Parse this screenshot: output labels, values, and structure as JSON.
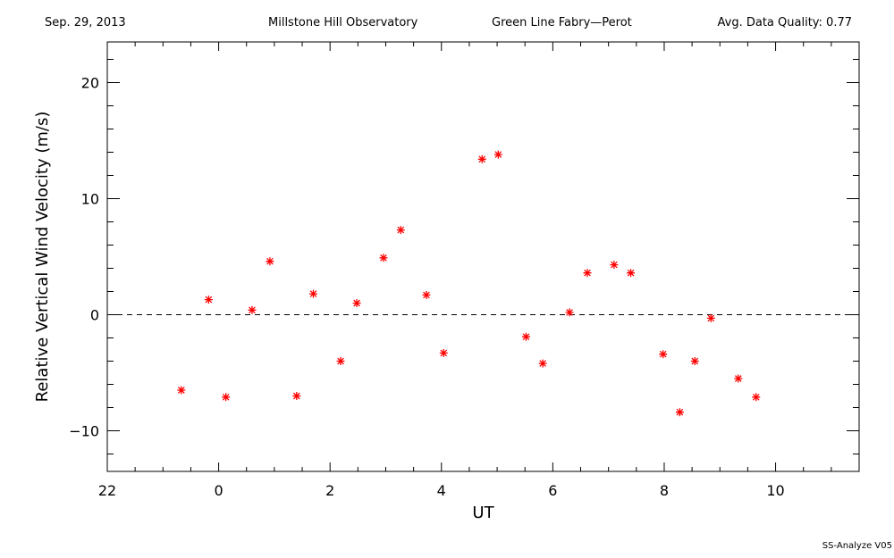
{
  "header": {
    "date": "Sep. 29, 2013",
    "observatory": "Millstone Hill Observatory",
    "instrument": "Green Line Fabry—Perot",
    "quality": "Avg. Data Quality: 0.77"
  },
  "footer": "SS-Analyze V05",
  "chart_data": {
    "type": "scatter",
    "xlabel": "UT",
    "ylabel": "Relative Vertical Wind Velocity (m/s)",
    "xlim": [
      22.0,
      35.5
    ],
    "ylim": [
      -13.5,
      23.5
    ],
    "x_ticks": [
      22,
      24,
      26,
      28,
      30,
      32,
      34
    ],
    "x_tick_labels": [
      "22",
      "0",
      "2",
      "4",
      "6",
      "8",
      "10"
    ],
    "y_ticks": [
      -10,
      0,
      10,
      20
    ],
    "y_tick_labels": [
      "−10",
      "0",
      "10",
      "20"
    ],
    "reference_line": 0,
    "marker": "asterisk",
    "marker_color": "#ff0000",
    "series": [
      {
        "x": [
          23.33,
          23.82,
          24.13,
          24.6,
          24.92,
          25.4,
          25.7,
          26.19,
          26.48,
          26.96,
          27.27,
          27.73,
          28.04,
          28.73,
          29.02,
          29.52,
          29.82,
          30.3,
          30.62,
          31.1,
          31.4,
          31.98,
          32.28,
          32.55,
          32.84,
          33.33,
          33.65
        ],
        "y": [
          -6.5,
          1.3,
          -7.1,
          0.4,
          4.6,
          -7.0,
          1.8,
          -4.0,
          1.0,
          4.9,
          7.3,
          1.7,
          -3.3,
          13.4,
          13.8,
          -1.9,
          -4.2,
          0.2,
          3.6,
          4.3,
          3.6,
          -3.4,
          -8.4,
          -4.0,
          -0.3,
          -5.5,
          -7.1
        ]
      }
    ]
  }
}
